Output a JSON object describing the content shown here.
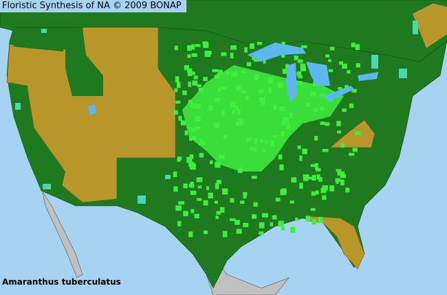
{
  "header": {
    "title": "Floristic Synthesis of NA © 2009 BONAP"
  },
  "species": {
    "name": "Amaranthus tuberculatus"
  },
  "colors": {
    "ocean": "#a6d3f2",
    "present_in_state": "#1f7a1f",
    "county_present": "#3ef03e",
    "county_rare": "#48d8b0",
    "absent_state": "#b8962a",
    "outside_area": "#c0c0c0",
    "lakes": "#5cb8ee"
  }
}
